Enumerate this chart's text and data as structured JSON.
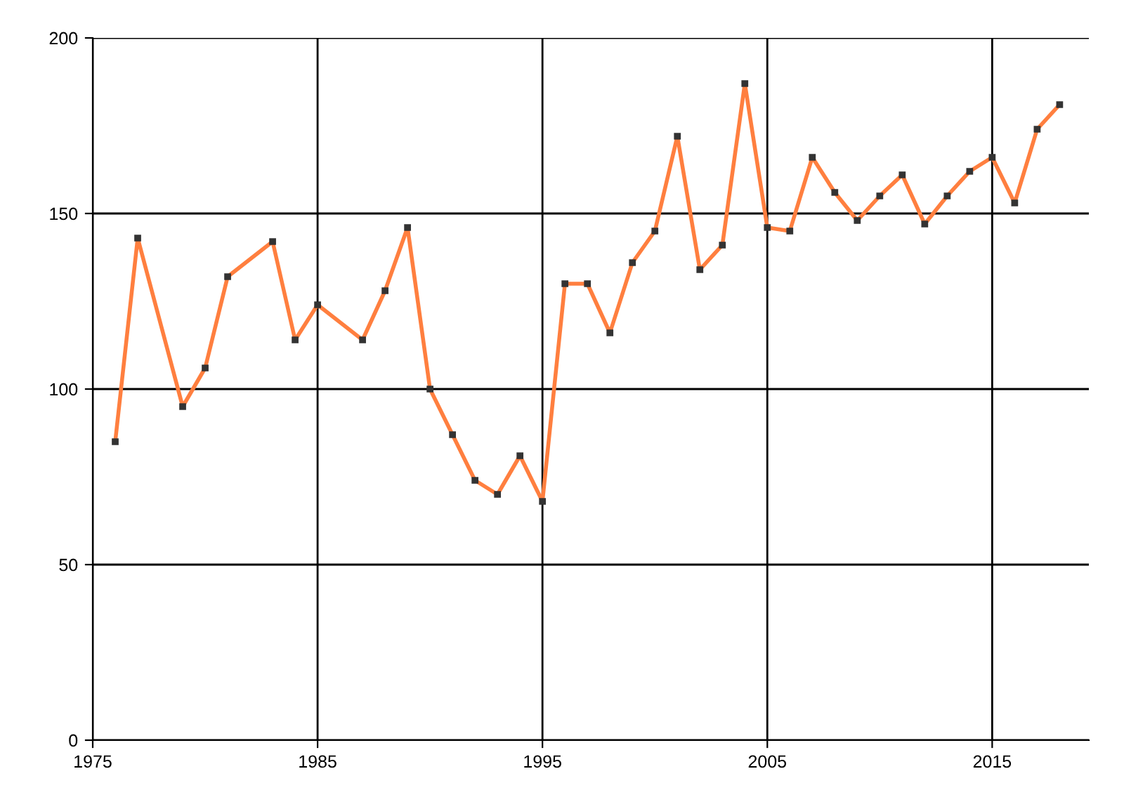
{
  "chart_data": {
    "type": "line",
    "x": [
      1976,
      1977,
      1979,
      1980,
      1981,
      1983,
      1984,
      1985,
      1987,
      1988,
      1989,
      1990,
      1991,
      1992,
      1993,
      1994,
      1995,
      1996,
      1997,
      1998,
      1999,
      2000,
      2001,
      2002,
      2003,
      2004,
      2005,
      2006,
      2007,
      2008,
      2009,
      2010,
      2011,
      2012,
      2013,
      2014,
      2015,
      2016,
      2017,
      2018
    ],
    "series": [
      {
        "color": "#ff7f3f",
        "values": [
          85,
          143,
          95,
          106,
          132,
          142,
          114,
          124,
          114,
          128,
          146,
          100,
          87,
          74,
          70,
          81,
          68,
          130,
          130,
          116,
          136,
          145,
          172,
          134,
          141,
          187,
          146,
          145,
          166,
          156,
          148,
          155,
          161,
          147,
          155,
          162,
          166,
          153,
          174,
          181
        ]
      }
    ],
    "xlim": [
      1975,
      2019.3
    ],
    "xticks": [
      1975,
      1985,
      1995,
      2005,
      2015
    ],
    "ylim": [
      0,
      200
    ],
    "yticks": [
      0,
      50,
      100,
      150,
      200
    ],
    "grid": true,
    "legend": false,
    "marker": "square",
    "line_style": "solid"
  }
}
